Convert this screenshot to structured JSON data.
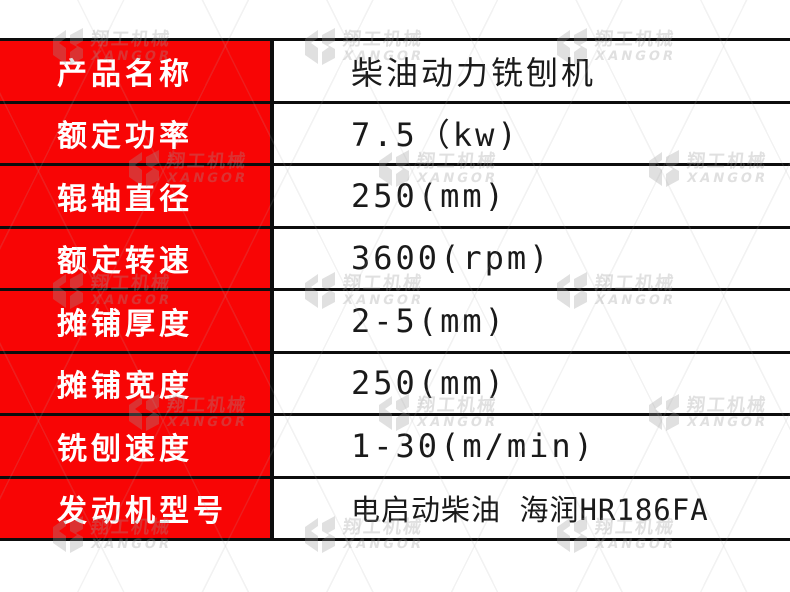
{
  "table": {
    "rows": [
      {
        "label": "产品名称",
        "value": "柴油动力铣刨机"
      },
      {
        "label": "额定功率",
        "value": "7.5（kw)"
      },
      {
        "label": "辊轴直径",
        "value": "250(mm)"
      },
      {
        "label": "额定转速",
        "value": "3600(rpm)"
      },
      {
        "label": "摊铺厚度",
        "value": "2-5(mm)"
      },
      {
        "label": "摊铺宽度",
        "value": "250(mm)"
      },
      {
        "label": "铣刨速度",
        "value": "1-30(m/min)"
      },
      {
        "label": "发动机型号",
        "value": "电启动柴油 海润HR186FA"
      }
    ]
  },
  "watermark": {
    "brand_cn": "翔工机械",
    "brand_en": "XANGOR"
  },
  "colors": {
    "label_bg_red": "#f80505",
    "border_black": "#0d0d0d",
    "label_text": "#ffffff",
    "value_text": "#1a1a1a",
    "watermark_gray": "#9a9a9a"
  }
}
